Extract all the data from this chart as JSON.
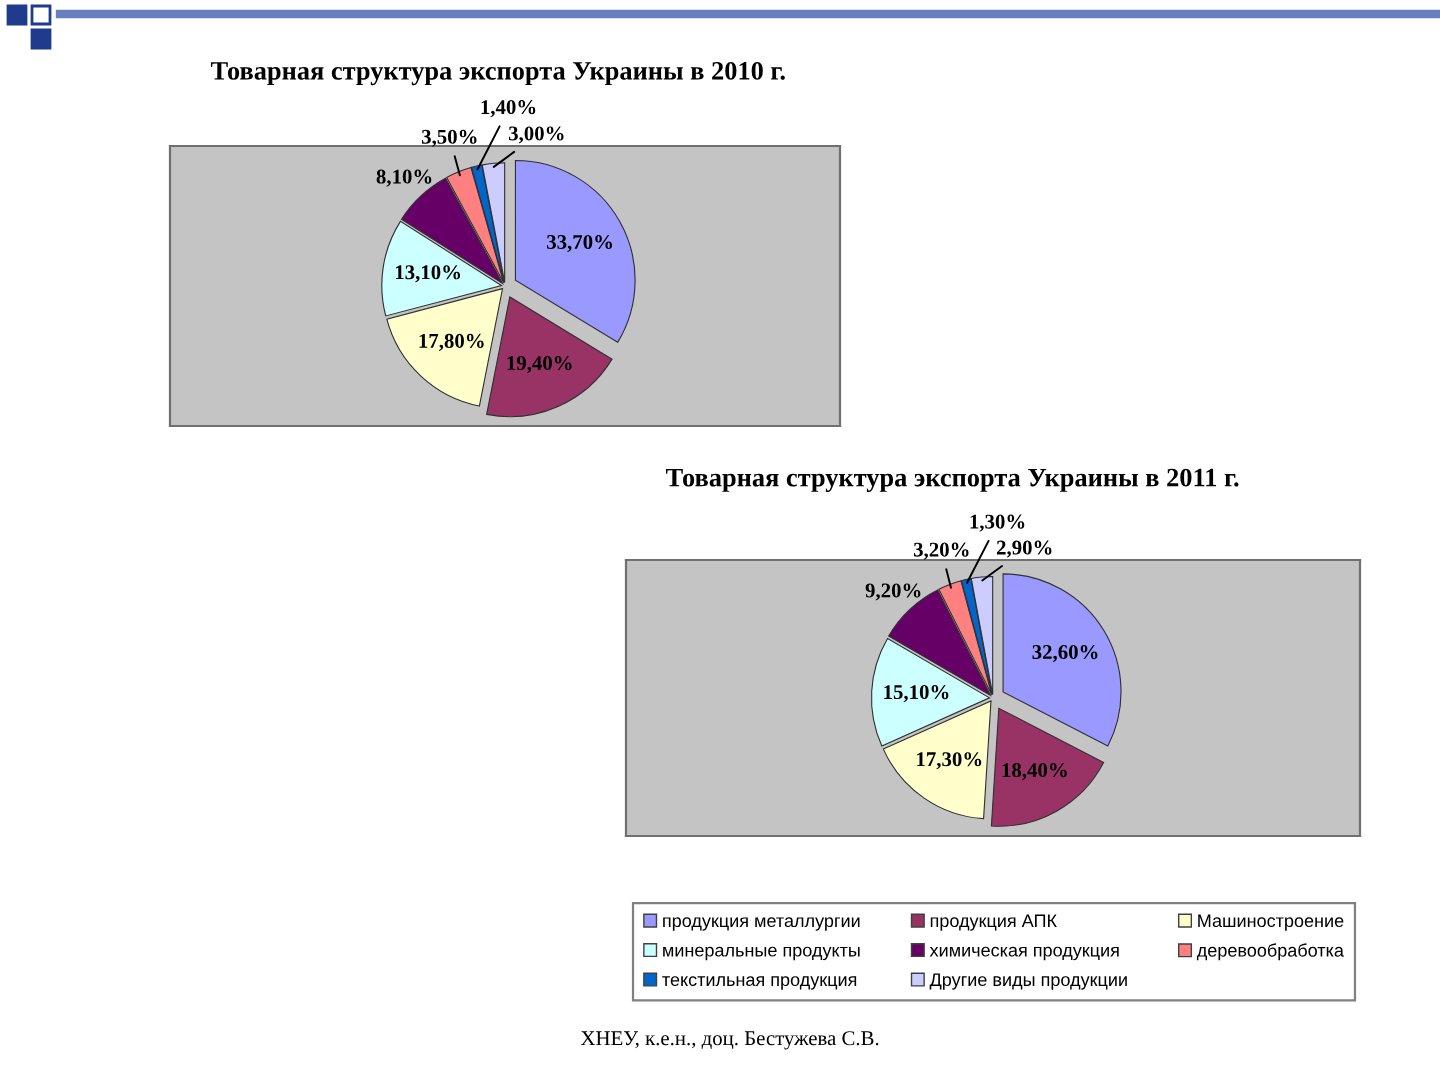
{
  "chart_data": [
    {
      "type": "pie",
      "title": "Товарная структура экспорта Украины в 2010 г.",
      "categories": [
        "продукция металлургии",
        "продукция АПК",
        "Машиностроение",
        "минеральные продукты",
        "химическая продукция",
        "деревообработка",
        "текстильная продукция",
        "Другие виды продукции"
      ],
      "values": [
        33.7,
        19.4,
        17.8,
        13.1,
        8.1,
        3.5,
        1.4,
        3.0
      ],
      "colors": [
        "#9999ff",
        "#993366",
        "#ffffcc",
        "#ccffff",
        "#660066",
        "#ff8080",
        "#0066cc",
        "#ccccff"
      ],
      "value_labels": [
        "33,70%",
        "19,40%",
        "17,80%",
        "13,10%",
        "8,10%",
        "3,50%",
        "1,40%",
        "3,00%"
      ],
      "legend": "bottom"
    },
    {
      "type": "pie",
      "title": "Товарная структура экспорта Украины в 2011 г.",
      "categories": [
        null,
        null,
        null,
        null,
        null,
        null,
        null,
        null
      ],
      "values": [
        32.6,
        18.4,
        17.3,
        15.1,
        9.2,
        3.2,
        1.3,
        2.9
      ],
      "colors": [
        "#9999ff",
        "#993366",
        "#ffffcc",
        "#ccffff",
        "#660066",
        "#ff8080",
        "#0066cc",
        "#ccccff"
      ],
      "value_labels": [
        "32,60%",
        "18,40%",
        "17,30%",
        "15,10%",
        "9,20%",
        "3,20%",
        "1,30%",
        "2,90%"
      ],
      "annotations": [
        "ХНЕУ, к.е.н., доц. Бестужева С.В."
      ]
    }
  ]
}
